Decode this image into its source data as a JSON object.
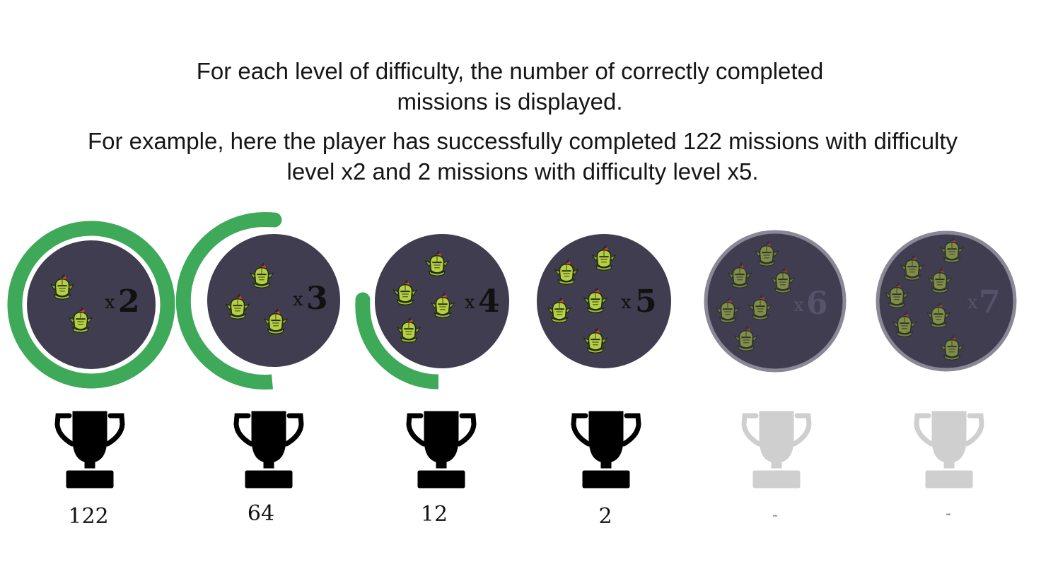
{
  "instructions": {
    "line1": "For each level of difficulty, the number of correctly completed",
    "line2": "missions is displayed.",
    "line3": "For example, here the player has successfully completed 122 missions with difficulty",
    "line4": "level x2 and 2 missions with difficulty level x5."
  },
  "colors": {
    "badge_fill": "#3f3d4f",
    "progress_ring": "#3fa95a",
    "trophy_active": "#000000",
    "trophy_inactive": "#cfcfcf",
    "locked_rim": "#8a8796"
  },
  "levels": [
    {
      "multiplier_x": "x",
      "multiplier_n": "2",
      "count": "122",
      "unlocked": true,
      "ring_progress": 1.0,
      "enemy_icon": "goblin-knight-icon",
      "enemies": 2
    },
    {
      "multiplier_x": "x",
      "multiplier_n": "3",
      "count": "64",
      "unlocked": true,
      "ring_progress": 0.5,
      "enemy_icon": "goblin-knight-icon",
      "enemies": 3
    },
    {
      "multiplier_x": "x",
      "multiplier_n": "4",
      "count": "12",
      "unlocked": true,
      "ring_progress": 0.25,
      "enemy_icon": "goblin-knight-icon",
      "enemies": 4
    },
    {
      "multiplier_x": "x",
      "multiplier_n": "5",
      "count": "2",
      "unlocked": true,
      "ring_progress": 0,
      "enemy_icon": "goblin-knight-icon",
      "enemies": 5
    },
    {
      "multiplier_x": "x",
      "multiplier_n": "6",
      "count": "-",
      "unlocked": false,
      "ring_progress": 0,
      "enemy_icon": "goblin-knight-icon",
      "enemies": 6
    },
    {
      "multiplier_x": "x",
      "multiplier_n": "7",
      "count": "-",
      "unlocked": false,
      "ring_progress": 0,
      "enemy_icon": "goblin-knight-icon",
      "enemies": 7
    }
  ]
}
